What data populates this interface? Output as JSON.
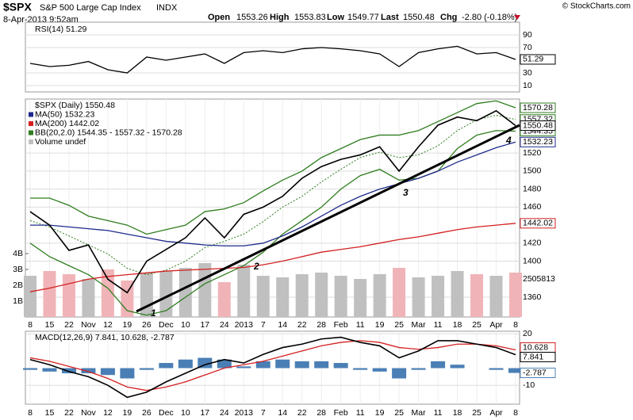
{
  "header": {
    "symbol": "$SPX",
    "name": "S&P 500 Large Cap Index",
    "exchange": "INDX",
    "timestamp": "8-Apr-2013 9:52am",
    "open_label": "Open",
    "open": "1553.26",
    "high_label": "High",
    "high": "1553.83",
    "low_label": "Low",
    "low": "1549.77",
    "last_label": "Last",
    "last": "1550.48",
    "chg_label": "Chg",
    "chg": "-2.80 (-0.18%)",
    "credit": "© StockCharts.com"
  },
  "chart_data": [
    {
      "type": "line",
      "title": "RSI(14) 51.29",
      "series": [
        {
          "name": "RSI(14) 51.29",
          "color": "#000000",
          "values": [
            45,
            40,
            42,
            48,
            35,
            30,
            55,
            50,
            55,
            60,
            45,
            62,
            65,
            62,
            68,
            70,
            68,
            65,
            60,
            40,
            62,
            68,
            72,
            60,
            62,
            51.29
          ]
        }
      ],
      "ylim": [
        0,
        110
      ],
      "yticks": [
        10,
        30,
        70,
        90
      ],
      "grid": true
    },
    {
      "type": "line",
      "categories": [
        "8",
        "15",
        "22",
        "Nov",
        "12",
        "19",
        "26",
        "Dec",
        "10",
        "17",
        "24",
        "2013",
        "7",
        "14",
        "22",
        "28",
        "Feb",
        "11",
        "19",
        "25",
        "Mar",
        "11",
        "18",
        "25",
        "Apr",
        "8"
      ],
      "series": [
        {
          "name": "$SPX (Daily) 1550.48",
          "color": "#000000",
          "values": [
            1455,
            1440,
            1412,
            1418,
            1380,
            1365,
            1400,
            1413,
            1426,
            1448,
            1426,
            1452,
            1460,
            1472,
            1492,
            1505,
            1513,
            1518,
            1527,
            1500,
            1527,
            1551,
            1560,
            1556,
            1567,
            1550.48
          ]
        },
        {
          "name": "MA(50) 1532.23",
          "color": "#1f2a8c",
          "values": [
            1440,
            1440,
            1438,
            1436,
            1434,
            1430,
            1426,
            1422,
            1420,
            1418,
            1417,
            1417,
            1420,
            1428,
            1438,
            1450,
            1462,
            1472,
            1480,
            1486,
            1492,
            1500,
            1510,
            1518,
            1526,
            1532.23
          ]
        },
        {
          "name": "MA(200) 1442.02",
          "color": "#d42020",
          "values": [
            1366,
            1370,
            1375,
            1380,
            1383,
            1385,
            1387,
            1389,
            1390,
            1391,
            1392,
            1393,
            1396,
            1400,
            1405,
            1410,
            1413,
            1416,
            1420,
            1424,
            1427,
            1431,
            1435,
            1438,
            1440,
            1442.02
          ]
        }
      ],
      "bands": {
        "name": "BB(20,2.0) 1544.35 - 1557.32 - 1570.28",
        "color": "#2e7d1e",
        "upper": [
          1470,
          1470,
          1462,
          1450,
          1445,
          1440,
          1430,
          1435,
          1440,
          1455,
          1458,
          1465,
          1478,
          1490,
          1500,
          1515,
          1525,
          1535,
          1540,
          1540,
          1545,
          1555,
          1565,
          1575,
          1578,
          1570.28
        ],
        "middle": [
          1445,
          1438,
          1428,
          1418,
          1408,
          1392,
          1385,
          1390,
          1400,
          1415,
          1422,
          1430,
          1444,
          1460,
          1472,
          1488,
          1502,
          1515,
          1521,
          1515,
          1518,
          1528,
          1545,
          1557,
          1562,
          1557.32
        ],
        "lower": [
          1420,
          1405,
          1395,
          1385,
          1370,
          1345,
          1340,
          1345,
          1360,
          1375,
          1385,
          1395,
          1410,
          1430,
          1445,
          1460,
          1480,
          1495,
          1502,
          1490,
          1492,
          1500,
          1525,
          1540,
          1545,
          1544.35
        ]
      },
      "volume": {
        "name": "Volume undef",
        "up_color": "#c0c0c0",
        "down_color": "#f0b4b8",
        "values": [
          2600000000,
          2900000000,
          2700000000,
          2400000000,
          3000000000,
          2300000000,
          2800000000,
          2900000000,
          3100000000,
          3400000000,
          2200000000,
          3300000000,
          2600000000,
          2500000000,
          2700000000,
          2800000000,
          2600000000,
          2400000000,
          2700000000,
          3100000000,
          2500000000,
          2600000000,
          2900000000,
          2700000000,
          2600000000,
          2800000000
        ],
        "last_volume": "2505813"
      },
      "ylim": [
        1338,
        1580
      ],
      "yticks": [
        1360,
        1400,
        1420,
        1460,
        1480,
        1500,
        1520
      ],
      "y2lim": [
        0,
        13750000000
      ],
      "y2ticks": [
        {
          "value": 1000000000,
          "label": "1B"
        },
        {
          "value": 2000000000,
          "label": "2B"
        },
        {
          "value": 3000000000,
          "label": "3B"
        },
        {
          "value": 4000000000,
          "label": "4B"
        }
      ],
      "annotations": [
        "1",
        "2",
        "3",
        "4"
      ],
      "grid": true
    },
    {
      "type": "macd",
      "categories": [
        "8",
        "15",
        "22",
        "Nov",
        "12",
        "19",
        "26",
        "Dec",
        "10",
        "17",
        "24",
        "2013",
        "7",
        "14",
        "22",
        "28",
        "Feb",
        "11",
        "19",
        "25",
        "Mar",
        "11",
        "18",
        "25",
        "Apr",
        "8"
      ],
      "title": "MACD(12,26,9) 7.841, 10.628, -2.787",
      "series": [
        {
          "name": "MACD",
          "color": "#000000",
          "values": [
            5,
            2,
            -2,
            -5,
            -10,
            -17,
            -14,
            -8,
            -3,
            2,
            5,
            3,
            8,
            12,
            14,
            17,
            18,
            15,
            13,
            6,
            10,
            16,
            16,
            14,
            12,
            7.841
          ]
        },
        {
          "name": "Signal",
          "color": "#d42020",
          "values": [
            6,
            4,
            1,
            -2,
            -6,
            -11,
            -13,
            -11,
            -8,
            -4,
            0,
            2,
            4,
            7,
            10,
            13,
            15,
            16,
            15,
            12,
            11,
            12,
            14,
            14,
            13,
            10.628
          ]
        },
        {
          "name": "Histogram",
          "color": "#4a7fb5",
          "values": [
            -1,
            -2,
            -3,
            -3,
            -4,
            -6,
            -1,
            3,
            5,
            6,
            5,
            1,
            4,
            5,
            4,
            4,
            3,
            -1,
            -2,
            -6,
            -1,
            4,
            2,
            0,
            -1,
            -2.787
          ]
        }
      ],
      "ylim": [
        -21,
        21.5
      ],
      "yticks": [
        -10,
        20
      ],
      "grid": true
    }
  ]
}
